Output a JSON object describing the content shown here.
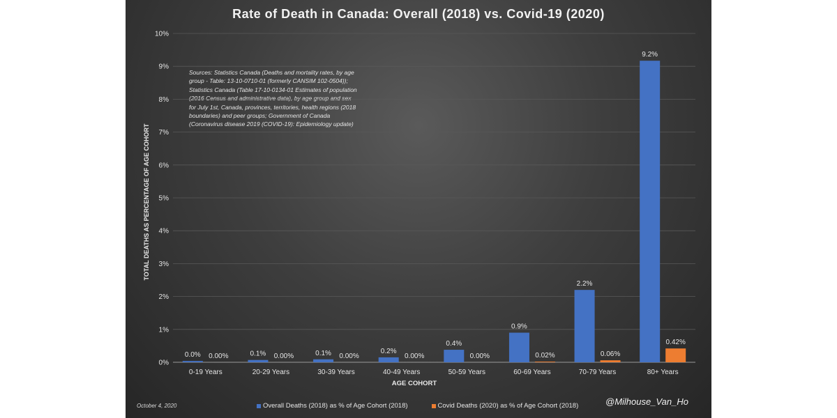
{
  "colors": {
    "overall": "#4472c4",
    "covid": "#ed7d31",
    "text": "#e6e6e6",
    "grid": "#595959"
  },
  "note": {
    "date": "October 4, 2020",
    "handle": "@Milhouse_Van_Ho",
    "source_lines": [
      "Sources: Statistics Canada (Deaths and mortality rates, by age",
      "group - Table: 13-10-0710-01 (formerly CANSIM 102-0504));",
      "Statistics Canada (Table 17-10-0134-01 Estimates of population",
      "(2016 Census and administrative data), by age group and sex",
      "for July 1st, Canada, provinces, territories, health regions (2018",
      "boundaries) and peer groups; Government of Canada",
      "(Coronavirus disease 2019 (COVID-19): Epidemiology update)"
    ]
  },
  "chart_data": {
    "type": "bar",
    "title": "Rate of Death in Canada: Overall (2018) vs. Covid-19 (2020)",
    "xlabel": "AGE COHORT",
    "ylabel": "TOTAL DEATHS AS PERCENTAGE OF AGE COHORT",
    "ylim": [
      0,
      10
    ],
    "yticks": [
      0,
      1,
      2,
      3,
      4,
      5,
      6,
      7,
      8,
      9,
      10
    ],
    "ytick_labels": [
      "0%",
      "1%",
      "2%",
      "3%",
      "4%",
      "5%",
      "6%",
      "7%",
      "8%",
      "9%",
      "10%"
    ],
    "grid": true,
    "legend_position": "bottom",
    "categories": [
      "0-19 Years",
      "20-29 Years",
      "30-39 Years",
      "40-49 Years",
      "50-59 Years",
      "60-69 Years",
      "70-79 Years",
      "80+ Years"
    ],
    "series": [
      {
        "name": "Overall Deaths (2018) as % of Age Cohort (2018)",
        "values": [
          0.04,
          0.07,
          0.09,
          0.15,
          0.38,
          0.9,
          2.2,
          9.17
        ],
        "labels": [
          "0.0%",
          "0.1%",
          "0.1%",
          "0.2%",
          "0.4%",
          "0.9%",
          "2.2%",
          "9.2%"
        ]
      },
      {
        "name": "Covid Deaths (2020) as % of Age Cohort (2018)",
        "values": [
          0.0,
          0.0,
          0.0,
          0.0,
          0.0,
          0.02,
          0.06,
          0.42
        ],
        "labels": [
          "0.00%",
          "0.00%",
          "0.00%",
          "0.00%",
          "0.00%",
          "0.02%",
          "0.06%",
          "0.42%"
        ]
      }
    ]
  }
}
